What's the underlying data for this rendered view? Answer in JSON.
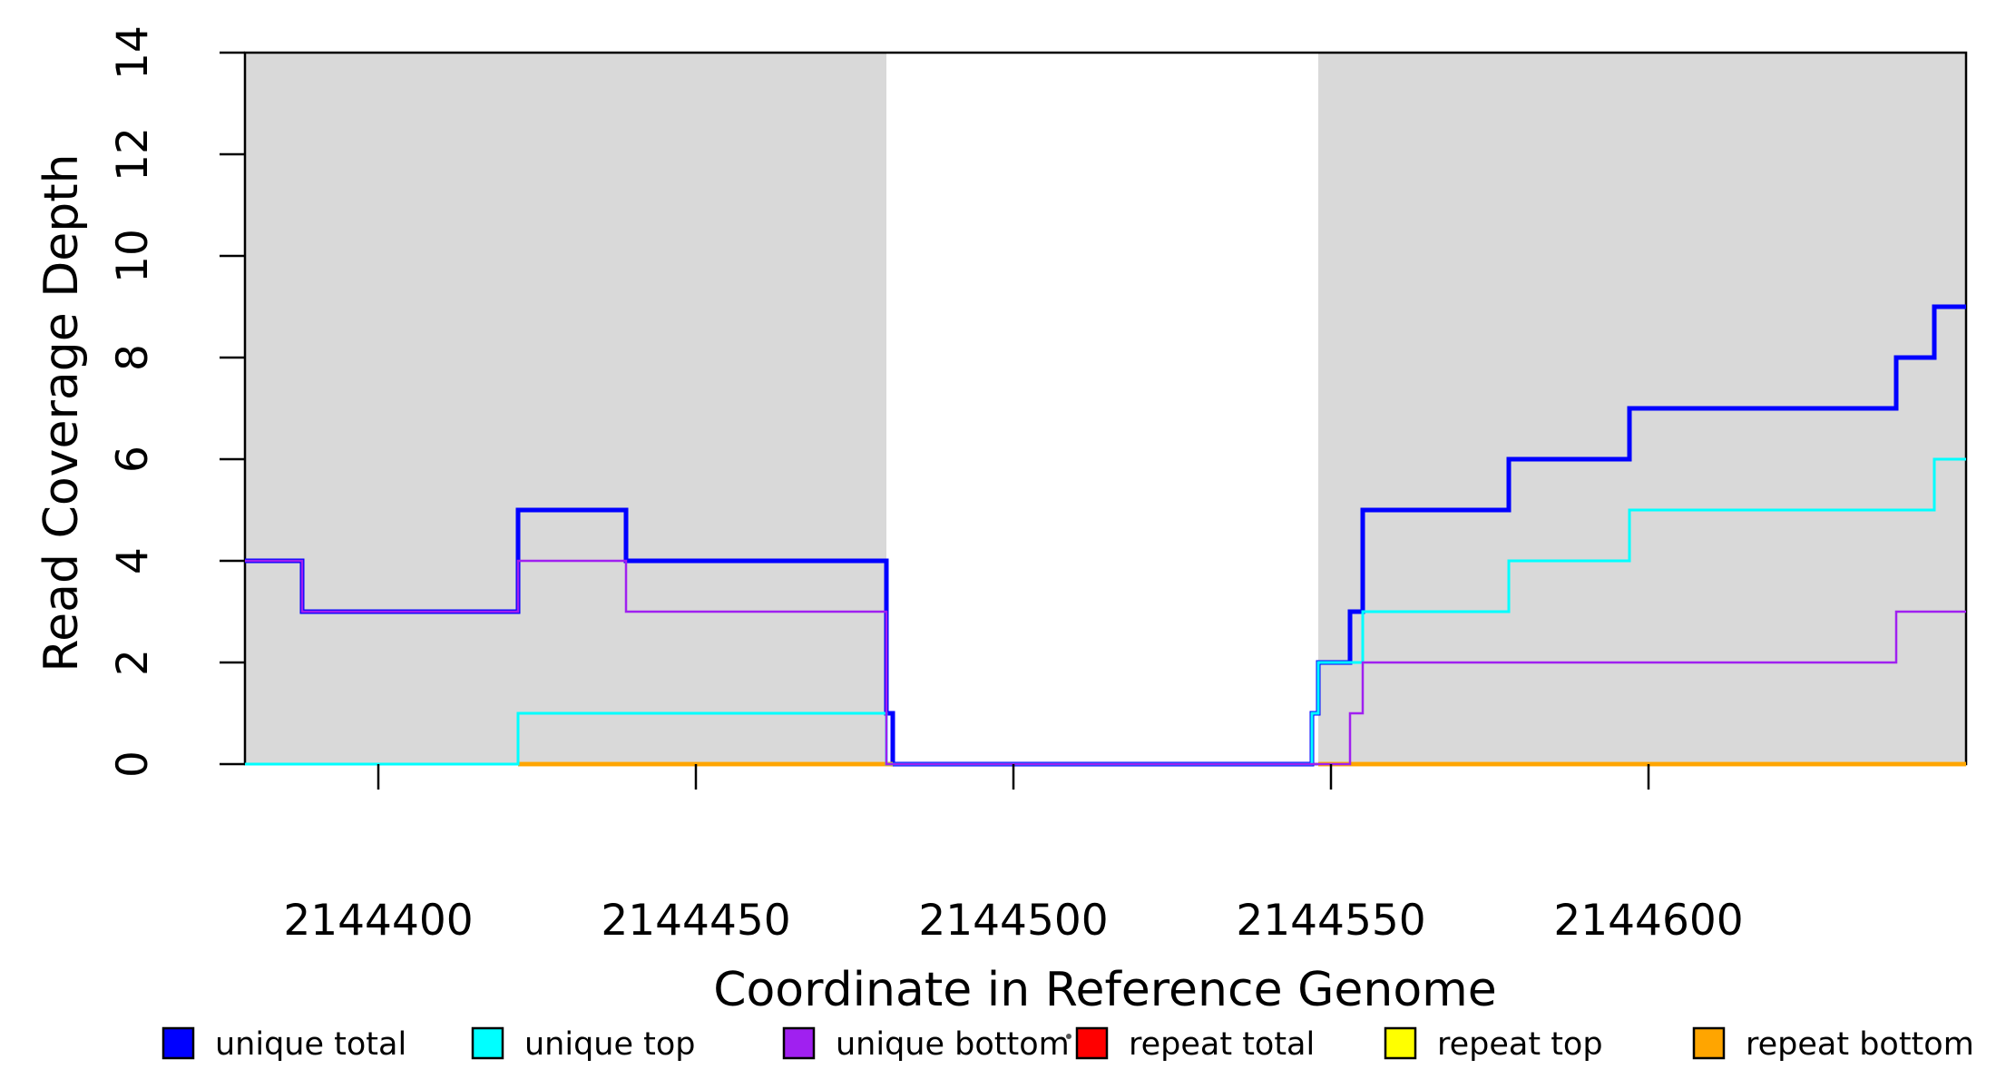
{
  "figure": {
    "background": "#ffffff",
    "shade_color": "#d9d9d9",
    "axis_color": "#000000",
    "stray_dot_present": true
  },
  "chart_data": {
    "type": "line",
    "subtype": "step-coverage",
    "title": "",
    "xlabel": "Coordinate in Reference Genome",
    "ylabel": "Read Coverage Depth",
    "xlim": [
      2144379,
      2144650
    ],
    "ylim": [
      0,
      14
    ],
    "x_ticks": [
      2144400,
      2144450,
      2144500,
      2144550,
      2144600
    ],
    "y_ticks": [
      0,
      2,
      4,
      6,
      8,
      10,
      12,
      14
    ],
    "grid": false,
    "box": true,
    "legend_position": "bottom",
    "shaded_regions": [
      {
        "x0": 2144379,
        "x1": 2144480,
        "meaning": "repeat region"
      },
      {
        "x0": 2144548,
        "x1": 2144650,
        "meaning": "repeat region"
      }
    ],
    "series": [
      {
        "name": "unique total",
        "color": "#0000ff",
        "line_width": 5,
        "x_end": 2144650,
        "steps": [
          [
            2144379,
            4
          ],
          [
            2144388,
            3
          ],
          [
            2144422,
            5
          ],
          [
            2144439,
            4
          ],
          [
            2144480,
            1
          ],
          [
            2144481,
            0
          ],
          [
            2144547,
            1
          ],
          [
            2144548,
            2
          ],
          [
            2144553,
            3
          ],
          [
            2144555,
            5
          ],
          [
            2144578,
            6
          ],
          [
            2144597,
            7
          ],
          [
            2144639,
            8
          ],
          [
            2144645,
            9
          ]
        ]
      },
      {
        "name": "unique top",
        "color": "#00ffff",
        "line_width": 3,
        "x_end": 2144650,
        "steps": [
          [
            2144379,
            0
          ],
          [
            2144422,
            1
          ],
          [
            2144480,
            0
          ],
          [
            2144547,
            1
          ],
          [
            2144548,
            2
          ],
          [
            2144555,
            3
          ],
          [
            2144578,
            4
          ],
          [
            2144597,
            5
          ],
          [
            2144645,
            6
          ]
        ]
      },
      {
        "name": "unique bottom",
        "color": "#a020f0",
        "line_width": 2.5,
        "x_end": 2144650,
        "steps": [
          [
            2144379,
            4
          ],
          [
            2144388,
            3
          ],
          [
            2144422,
            4
          ],
          [
            2144439,
            3
          ],
          [
            2144480,
            0
          ],
          [
            2144553,
            1
          ],
          [
            2144555,
            2
          ],
          [
            2144639,
            3
          ]
        ]
      },
      {
        "name": "repeat total",
        "color": "#ff0000",
        "line_width": 4.5,
        "value": 0,
        "flat_segments": [
          [
            2144422,
            2144481
          ],
          [
            2144548,
            2144650
          ]
        ]
      },
      {
        "name": "repeat top",
        "color": "#ffff00",
        "line_width": 4.5,
        "value": 0,
        "flat_segments": [
          [
            2144422,
            2144481
          ],
          [
            2144548,
            2144650
          ]
        ]
      },
      {
        "name": "repeat bottom",
        "color": "#ffa500",
        "line_width": 4.5,
        "value": 0,
        "flat_segments": [
          [
            2144422,
            2144481
          ],
          [
            2144548,
            2144650
          ]
        ]
      }
    ],
    "legend": [
      {
        "label": "unique total",
        "color": "#0000ff"
      },
      {
        "label": "unique top",
        "color": "#00ffff"
      },
      {
        "label": "unique bottom",
        "color": "#a020f0"
      },
      {
        "label": "repeat total",
        "color": "#ff0000"
      },
      {
        "label": "repeat top",
        "color": "#ffff00"
      },
      {
        "label": "repeat bottom",
        "color": "#ffa500"
      }
    ]
  }
}
